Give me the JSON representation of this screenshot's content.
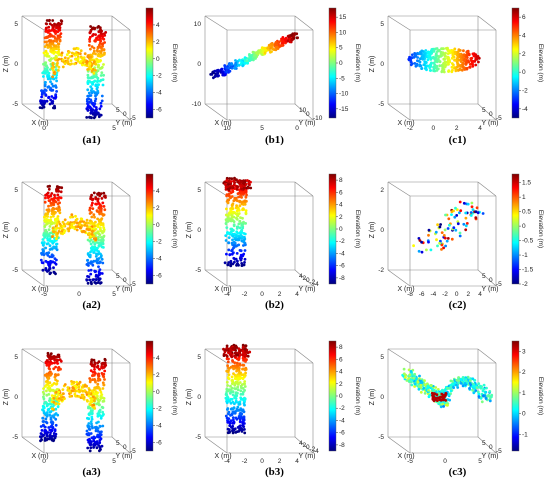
{
  "colors": {
    "jet": [
      "#00007f",
      "#0000ff",
      "#007fff",
      "#00ffff",
      "#7fff7f",
      "#ffff00",
      "#ff7f00",
      "#ff0000",
      "#7f0000"
    ],
    "frame": "#888888"
  },
  "chart_data": [
    {
      "id": "a1",
      "caption": "(a1)",
      "type": "scatter",
      "shape": "bridge",
      "axes": {
        "x": "X (m)",
        "y": "Y (m)",
        "z": "Z (m)"
      },
      "x_ticks": [
        "0",
        "5"
      ],
      "y_ticks": [
        "5",
        "0",
        "-5"
      ],
      "z_ticks": [
        "5",
        "0",
        "-5"
      ],
      "colorbar": {
        "label": "Elevation (m)",
        "ticks": [
          "4",
          "2",
          "0",
          "-2",
          "-4",
          "-6"
        ],
        "range": [
          -7,
          6
        ]
      }
    },
    {
      "id": "b1",
      "caption": "(b1)",
      "type": "scatter",
      "shape": "diagonal",
      "axes": {
        "x": "X (m)",
        "y": "Y (m)",
        "z": ""
      },
      "x_ticks": [
        "10",
        "5",
        "0"
      ],
      "y_ticks": [
        "10",
        "0",
        "-10"
      ],
      "z_ticks": [
        "10",
        "0",
        "-10"
      ],
      "colorbar": {
        "label": "Elevation (m)",
        "ticks": [
          "15",
          "10",
          "5",
          "0",
          "-5",
          "-10",
          "-15"
        ],
        "range": [
          -18,
          18
        ]
      }
    },
    {
      "id": "c1",
      "caption": "(c1)",
      "type": "scatter",
      "shape": "blob",
      "axes": {
        "x": "X (m)",
        "y": "Y (m)",
        "z": "Z (m)"
      },
      "x_ticks": [
        "-2",
        "0",
        "2",
        "4"
      ],
      "y_ticks": [
        "5",
        "0",
        "-5"
      ],
      "z_ticks": [
        "5",
        "0",
        "-5"
      ],
      "colorbar": {
        "label": "Elevation (m)",
        "ticks": [
          "6",
          "4",
          "2",
          "0",
          "-2",
          "-4"
        ],
        "range": [
          -5,
          7
        ]
      }
    },
    {
      "id": "a2",
      "caption": "(a2)",
      "type": "scatter",
      "shape": "bridge",
      "axes": {
        "x": "X (m)",
        "y": "Y (m)",
        "z": "Z (m)"
      },
      "x_ticks": [
        "-5",
        "0",
        "5"
      ],
      "y_ticks": [
        "5",
        "0",
        "-5"
      ],
      "z_ticks": [
        "5",
        "0",
        "-5"
      ],
      "colorbar": {
        "label": "Elevation (m)",
        "ticks": [
          "4",
          "2",
          "0",
          "-2",
          "-4",
          "-6"
        ],
        "range": [
          -7,
          6
        ]
      }
    },
    {
      "id": "b2",
      "caption": "(b2)",
      "type": "scatter",
      "shape": "column",
      "axes": {
        "x": "X (m)",
        "y": "Y (m)",
        "z": "Z (m)"
      },
      "x_ticks": [
        "-4",
        "-2",
        "0",
        "2",
        "4"
      ],
      "y_ticks": [
        "4",
        "2",
        "0",
        "-2",
        "-4"
      ],
      "z_ticks": [
        "5",
        "0",
        "-5"
      ],
      "colorbar": {
        "label": "Elevation (m)",
        "ticks": [
          "8",
          "6",
          "4",
          "2",
          "0",
          "-2",
          "-4",
          "-6",
          "-8"
        ],
        "range": [
          -9,
          9
        ]
      }
    },
    {
      "id": "c2",
      "caption": "(c2)",
      "type": "scatter",
      "shape": "sparse",
      "axes": {
        "x": "X (m)",
        "y": "Y (m)",
        "z": "Z (m)"
      },
      "x_ticks": [
        "-8",
        "-6",
        "-4",
        "-2",
        "0",
        "2",
        "4"
      ],
      "y_ticks": [
        "5",
        "0",
        "-5"
      ],
      "z_ticks": [
        "2",
        "0",
        "-2"
      ],
      "colorbar": {
        "label": "Elevation (m)",
        "ticks": [
          "1.5",
          "1",
          "0.5",
          "0",
          "-0.5",
          "-1",
          "-1.5",
          "-2"
        ],
        "range": [
          -2,
          1.8
        ]
      }
    },
    {
      "id": "a3",
      "caption": "(a3)",
      "type": "scatter",
      "shape": "bridge",
      "axes": {
        "x": "X (m)",
        "y": "Y (m)",
        "z": "Z (m)"
      },
      "x_ticks": [
        "0",
        "5"
      ],
      "y_ticks": [
        "5",
        "0",
        "-5"
      ],
      "z_ticks": [
        "5",
        "0",
        "-5"
      ],
      "colorbar": {
        "label": "Elevation (m)",
        "ticks": [
          "4",
          "2",
          "0",
          "-2",
          "-4",
          "-6"
        ],
        "range": [
          -7,
          6
        ]
      }
    },
    {
      "id": "b3",
      "caption": "(b3)",
      "type": "scatter",
      "shape": "column",
      "axes": {
        "x": "X (m)",
        "y": "Y (m)",
        "z": "Z (m)"
      },
      "x_ticks": [
        "-4",
        "-2",
        "0",
        "2",
        "4"
      ],
      "y_ticks": [
        "4",
        "2",
        "0",
        "-2",
        "-4"
      ],
      "z_ticks": [
        "5",
        "0",
        "-5"
      ],
      "colorbar": {
        "label": "Elevation (m)",
        "ticks": [
          "8",
          "6",
          "4",
          "2",
          "0",
          "-2",
          "-4",
          "-6",
          "-8"
        ],
        "range": [
          -9,
          9
        ]
      }
    },
    {
      "id": "c3",
      "caption": "(c3)",
      "type": "scatter",
      "shape": "snake",
      "axes": {
        "x": "X (m)",
        "y": "Y (m)",
        "z": "Z (m)"
      },
      "x_ticks": [
        "-5",
        "0",
        "5"
      ],
      "y_ticks": [
        "5",
        "0",
        "-5"
      ],
      "z_ticks": [
        "5",
        "0",
        "-5"
      ],
      "colorbar": {
        "label": "Elevation (m)",
        "ticks": [
          "3",
          "2",
          "1",
          "0",
          "-1"
        ],
        "range": [
          -1.8,
          3.5
        ]
      }
    }
  ]
}
